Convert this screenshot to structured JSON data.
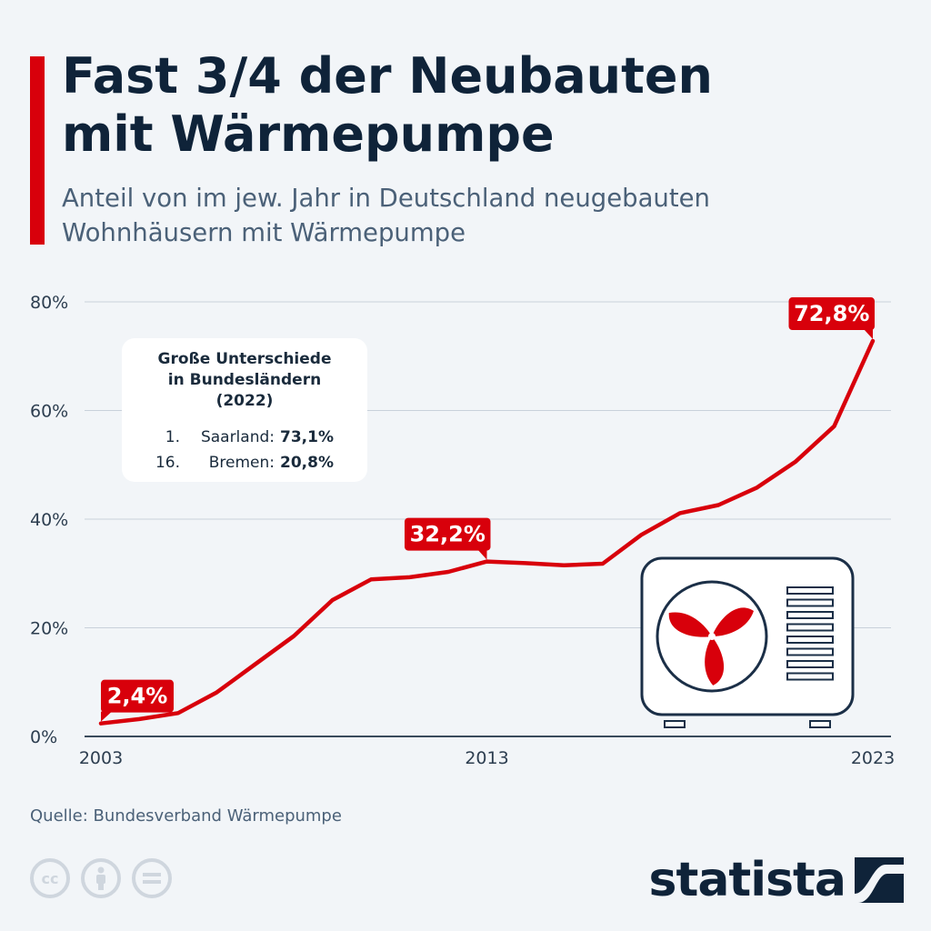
{
  "header": {
    "title": "Fast 3/4 der Neubauten\nmit Wärmepumpe",
    "subtitle": "Anteil von im jew. Jahr in Deutschland neugebauten\nWohnhäusern mit Wärmepumpe",
    "accent_color": "#d8000b"
  },
  "chart_data": {
    "type": "line",
    "x": [
      2003,
      2004,
      2005,
      2006,
      2007,
      2008,
      2009,
      2010,
      2011,
      2012,
      2013,
      2014,
      2015,
      2016,
      2017,
      2018,
      2019,
      2020,
      2021,
      2022,
      2023
    ],
    "series": [
      {
        "values": [
          2.4,
          3.2,
          4.3,
          8.1,
          13.3,
          18.5,
          25.1,
          28.9,
          29.3,
          30.3,
          32.2,
          31.9,
          31.5,
          31.8,
          37.1,
          41.1,
          42.6,
          45.8,
          50.6,
          57.1,
          72.8
        ],
        "color": "#d8000b"
      }
    ],
    "x_tick_labels": [
      "2003",
      "2013",
      "2023"
    ],
    "y_tick_labels": [
      "0%",
      "20%",
      "40%",
      "60%",
      "80%"
    ],
    "ylim": [
      0,
      80
    ],
    "grid": true,
    "value_labels": [
      {
        "year": 2003,
        "text": "2,4%"
      },
      {
        "year": 2013,
        "text": "32,2%"
      },
      {
        "year": 2023,
        "text": "72,8%"
      }
    ],
    "annotation": {
      "title": "Große Unterschiede\nin Bundesländern\n(2022)",
      "rows": [
        {
          "rank": "1.",
          "name": "Saarland:",
          "value": "73,1%"
        },
        {
          "rank": "16.",
          "name": "Bremen:",
          "value": "20,8%"
        }
      ]
    }
  },
  "footer": {
    "source": "Quelle: Bundesverband Wärmepumpe",
    "license_icons": [
      "cc-icon",
      "by-person-icon",
      "nd-equals-icon"
    ],
    "logo_text": "statista"
  }
}
